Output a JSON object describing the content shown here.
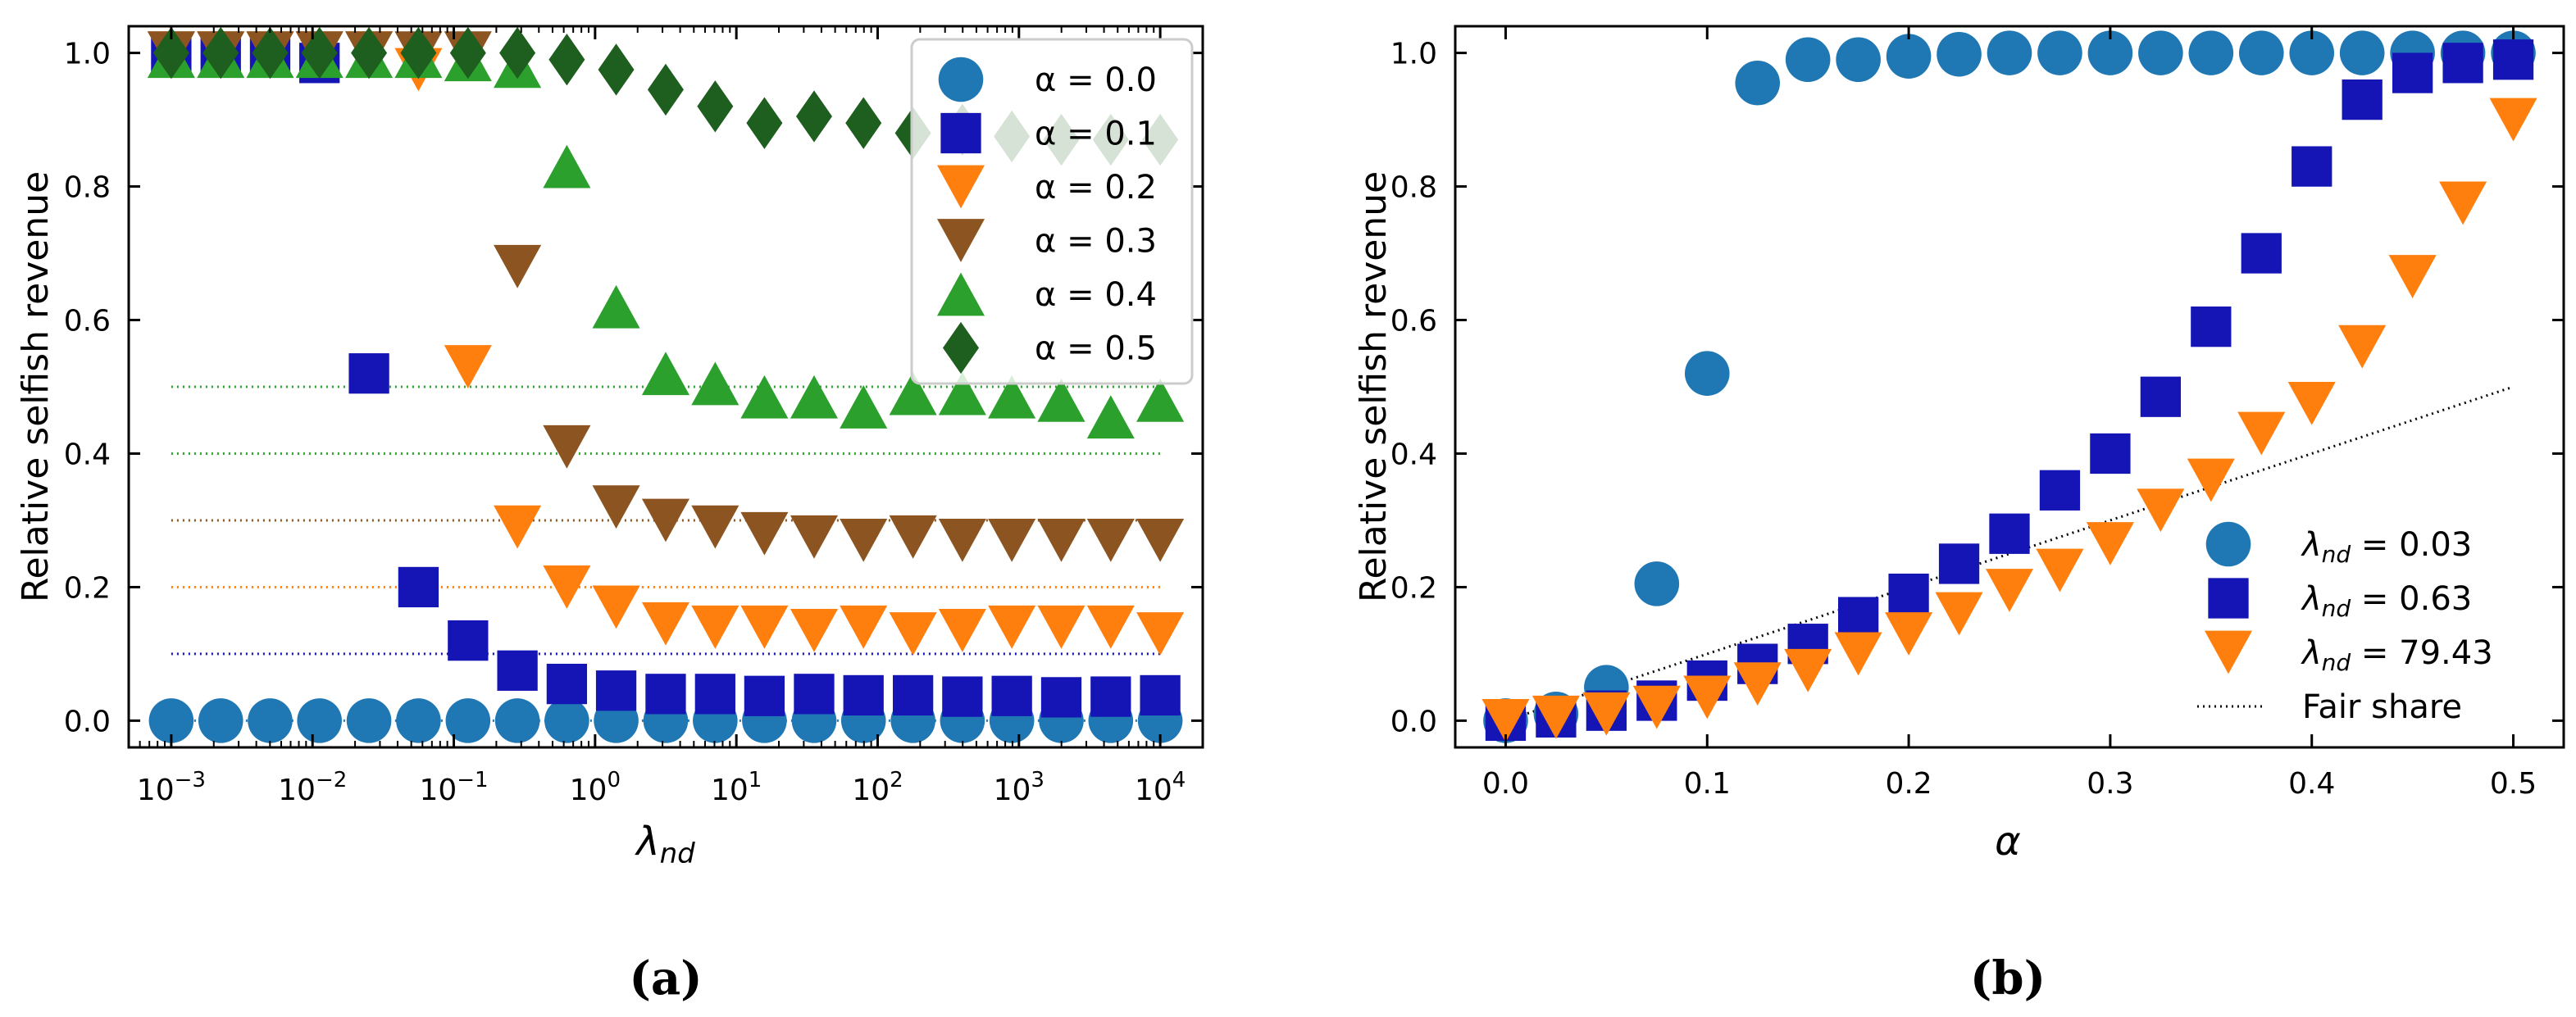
{
  "colors": {
    "alpha_0.0": "#1f77b4",
    "alpha_0.1": "#1515b5",
    "alpha_0.2": "#ff7f0e",
    "alpha_0.3": "#8c5420",
    "alpha_0.4": "#2ca02c",
    "alpha_0.5": "#1e5e1e",
    "lambda_0.03": "#1f77b4",
    "lambda_0.63": "#1515b5",
    "lambda_79.43": "#ff7f0e",
    "fair": "#000000"
  },
  "chart_data": [
    {
      "type": "scatter",
      "panel": "(a)",
      "caption": "(a)",
      "ylabel": "Relative selfish revenue",
      "xlabel": "λnd",
      "xscale": "log",
      "xlim": [
        0.0005,
        20000
      ],
      "ylim": [
        -0.04,
        1.04
      ],
      "xticks": [
        0.001,
        0.01,
        0.1,
        1,
        10,
        100,
        1000,
        10000
      ],
      "xticklabels": [
        {
          "base": "10",
          "exp": "−3"
        },
        {
          "base": "10",
          "exp": "−2"
        },
        {
          "base": "10",
          "exp": "−1"
        },
        {
          "base": "10",
          "exp": "0"
        },
        {
          "base": "10",
          "exp": "1"
        },
        {
          "base": "10",
          "exp": "2"
        },
        {
          "base": "10",
          "exp": "3"
        },
        {
          "base": "10",
          "exp": "4"
        }
      ],
      "yticks": [
        0.0,
        0.2,
        0.4,
        0.6,
        0.8,
        1.0
      ],
      "yticklabels": [
        "0.0",
        "0.2",
        "0.4",
        "0.6",
        "0.8",
        "1.0"
      ],
      "x": [
        0.001,
        0.00224,
        0.00501,
        0.0112,
        0.0251,
        0.0562,
        0.126,
        0.282,
        0.631,
        1.41,
        3.16,
        7.08,
        15.8,
        35.5,
        79.4,
        178,
        398,
        891,
        1995,
        4467,
        10000
      ],
      "legend": {
        "position": "top-right",
        "entries": [
          {
            "key": "alpha_0.0",
            "label": "α = 0.0",
            "marker": "circle"
          },
          {
            "key": "alpha_0.1",
            "label": "α = 0.1",
            "marker": "square"
          },
          {
            "key": "alpha_0.2",
            "label": "α = 0.2",
            "marker": "triangle-down"
          },
          {
            "key": "alpha_0.3",
            "label": "α = 0.3",
            "marker": "triangle-down"
          },
          {
            "key": "alpha_0.4",
            "label": "α = 0.4",
            "marker": "triangle-up"
          },
          {
            "key": "alpha_0.5",
            "label": "α = 0.5",
            "marker": "diamond"
          }
        ]
      },
      "fair_lines": [
        {
          "y": 0.0,
          "color_key": "alpha_0.0"
        },
        {
          "y": 0.1,
          "color_key": "alpha_0.1"
        },
        {
          "y": 0.2,
          "color_key": "alpha_0.2"
        },
        {
          "y": 0.3,
          "color_key": "alpha_0.3"
        },
        {
          "y": 0.4,
          "color_key": "alpha_0.4"
        },
        {
          "y": 0.5,
          "color_key": "alpha_0.4"
        }
      ],
      "series": [
        {
          "key": "alpha_0.0",
          "name": "α = 0.0",
          "marker": "circle",
          "values": [
            0,
            0,
            0,
            0,
            0,
            0,
            0,
            0,
            0,
            0,
            0,
            0,
            0,
            0,
            0,
            0,
            0,
            0,
            0,
            0,
            0
          ]
        },
        {
          "key": "alpha_0.1",
          "name": "α = 0.1",
          "marker": "square",
          "values": [
            1.0,
            1.0,
            1.0,
            0.985,
            0.52,
            0.2,
            0.12,
            0.075,
            0.055,
            0.045,
            0.04,
            0.04,
            0.037,
            0.04,
            0.038,
            0.038,
            0.036,
            0.037,
            0.035,
            0.036,
            0.038
          ]
        },
        {
          "key": "alpha_0.2",
          "name": "α = 0.2",
          "marker": "triangle-down",
          "values": [
            1.0,
            1.0,
            1.0,
            1.0,
            1.0,
            0.975,
            0.53,
            0.29,
            0.2,
            0.17,
            0.145,
            0.14,
            0.14,
            0.135,
            0.14,
            0.13,
            0.135,
            0.14,
            0.14,
            0.14,
            0.13
          ]
        },
        {
          "key": "alpha_0.3",
          "name": "α = 0.3",
          "marker": "triangle-down",
          "values": [
            1.0,
            1.0,
            1.0,
            1.0,
            1.0,
            1.0,
            1.0,
            0.68,
            0.41,
            0.32,
            0.3,
            0.29,
            0.28,
            0.275,
            0.27,
            0.275,
            0.27,
            0.27,
            0.27,
            0.27,
            0.27
          ]
        },
        {
          "key": "alpha_0.4",
          "name": "α = 0.4",
          "marker": "triangle-up",
          "values": [
            0.995,
            0.995,
            0.995,
            0.995,
            0.995,
            0.995,
            0.99,
            0.98,
            0.83,
            0.62,
            0.52,
            0.505,
            0.485,
            0.485,
            0.47,
            0.49,
            0.49,
            0.485,
            0.48,
            0.455,
            0.48
          ]
        },
        {
          "key": "alpha_0.5",
          "name": "α = 0.5",
          "marker": "diamond",
          "values": [
            1.0,
            1.0,
            1.0,
            1.0,
            1.0,
            1.0,
            1.0,
            1.0,
            0.99,
            0.975,
            0.945,
            0.92,
            0.895,
            0.905,
            0.895,
            0.88,
            0.885,
            0.875,
            0.87,
            0.87,
            0.87
          ]
        }
      ]
    },
    {
      "type": "scatter",
      "panel": "(b)",
      "caption": "(b)",
      "ylabel": "Relative selfish revenue",
      "xlabel": "α",
      "xscale": "linear",
      "xlim": [
        -0.025,
        0.525
      ],
      "ylim": [
        -0.04,
        1.04
      ],
      "xticks": [
        0.0,
        0.1,
        0.2,
        0.3,
        0.4,
        0.5
      ],
      "xticklabels": [
        "0.0",
        "0.1",
        "0.2",
        "0.3",
        "0.4",
        "0.5"
      ],
      "yticks": [
        0.0,
        0.2,
        0.4,
        0.6,
        0.8,
        1.0
      ],
      "yticklabels": [
        "0.0",
        "0.2",
        "0.4",
        "0.6",
        "0.8",
        "1.0"
      ],
      "x": [
        0,
        0.025,
        0.05,
        0.075,
        0.1,
        0.125,
        0.15,
        0.175,
        0.2,
        0.225,
        0.25,
        0.275,
        0.3,
        0.325,
        0.35,
        0.375,
        0.4,
        0.425,
        0.45,
        0.475,
        0.5
      ],
      "legend": {
        "position": "bottom-right",
        "entries": [
          {
            "key": "lambda_0.03",
            "label": "λnd = 0.03",
            "sym": "λ",
            "sub": "nd",
            "value": " = 0.03",
            "marker": "circle"
          },
          {
            "key": "lambda_0.63",
            "label": "λnd = 0.63",
            "sym": "λ",
            "sub": "nd",
            "value": " = 0.63",
            "marker": "square"
          },
          {
            "key": "lambda_79.43",
            "label": "λnd = 79.43",
            "sym": "λ",
            "sub": "nd",
            "value": " = 79.43",
            "marker": "triangle-down"
          },
          {
            "key": "fair",
            "label": "Fair share",
            "marker": "dotted-line"
          }
        ]
      },
      "fair_share": {
        "x": [
          0.0,
          0.5
        ],
        "y": [
          0.0,
          0.5
        ]
      },
      "series": [
        {
          "key": "lambda_0.03",
          "name": "λnd = 0.03",
          "marker": "circle",
          "values": [
            0,
            0.01,
            0.05,
            0.205,
            0.52,
            0.955,
            0.99,
            0.99,
            0.995,
            0.998,
            1.0,
            1.0,
            1.0,
            1.0,
            1.0,
            1.0,
            1.0,
            1.0,
            1.0,
            1.0,
            1.0
          ]
        },
        {
          "key": "lambda_0.63",
          "name": "λnd = 0.63",
          "marker": "square",
          "values": [
            0,
            0.005,
            0.015,
            0.03,
            0.06,
            0.085,
            0.115,
            0.155,
            0.19,
            0.235,
            0.28,
            0.345,
            0.4,
            0.485,
            0.59,
            0.7,
            0.83,
            0.93,
            0.97,
            0.985,
            0.99
          ]
        },
        {
          "key": "lambda_79.43",
          "name": "λnd = 79.43",
          "marker": "triangle-down",
          "values": [
            0,
            0.005,
            0.01,
            0.02,
            0.035,
            0.055,
            0.075,
            0.1,
            0.13,
            0.16,
            0.195,
            0.225,
            0.265,
            0.315,
            0.36,
            0.43,
            0.475,
            0.56,
            0.665,
            0.775,
            0.9
          ]
        }
      ]
    }
  ]
}
